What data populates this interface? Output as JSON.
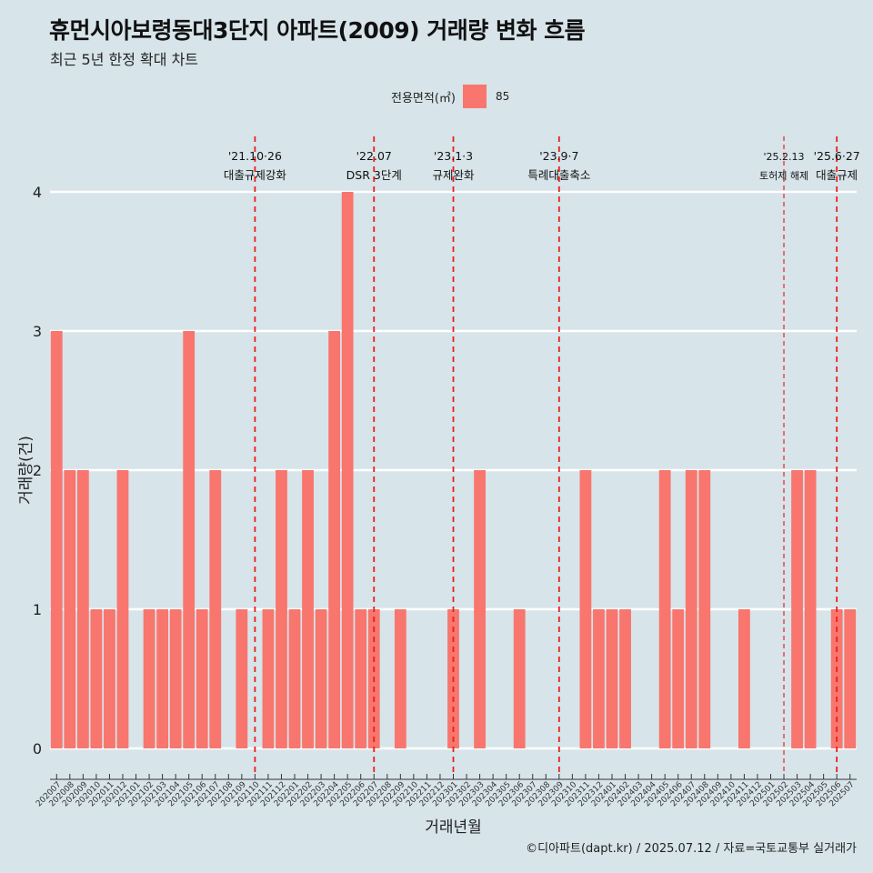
{
  "title": "휴먼시아보령동대3단지 아파트(2009) 거래량 변화 흐름",
  "subtitle": "최근 5년 한정 확대 차트",
  "caption": "©디아파트(dapt.kr) / 2025.07.12 / 자료=국토교통부 실거래가",
  "legend": {
    "label": "전용면적(㎡)",
    "entry": "85",
    "color": "#f8766d"
  },
  "colors": {
    "background": "#d7e4ea",
    "bar": "#f8766d",
    "event_line": "#e8201a",
    "grid": "#ffffff"
  },
  "chart_data": {
    "type": "bar",
    "title": "휴먼시아보령동대3단지 아파트(2009) 거래량 변화 흐름",
    "xlabel": "거래년월",
    "ylabel": "거래량(건)",
    "ylim": [
      0,
      4
    ],
    "y_ticks": [
      "0",
      "1",
      "2",
      "3",
      "4"
    ],
    "grid": true,
    "legend_placement": "top",
    "categories": [
      "202007",
      "202008",
      "202009",
      "202010",
      "202011",
      "202012",
      "202101",
      "202102",
      "202103",
      "202104",
      "202105",
      "202106",
      "202107",
      "202108",
      "202109",
      "202110",
      "202111",
      "202112",
      "202201",
      "202202",
      "202203",
      "202204",
      "202205",
      "202206",
      "202207",
      "202208",
      "202209",
      "202210",
      "202211",
      "202212",
      "202301",
      "202302",
      "202303",
      "202304",
      "202305",
      "202306",
      "202307",
      "202308",
      "202309",
      "202310",
      "202311",
      "202312",
      "202401",
      "202402",
      "202403",
      "202404",
      "202405",
      "202406",
      "202407",
      "202408",
      "202409",
      "202410",
      "202411",
      "202412",
      "202501",
      "202502",
      "202503",
      "202504",
      "202505",
      "202506",
      "202507"
    ],
    "series": [
      {
        "name": "85",
        "values": [
          3,
          2,
          2,
          1,
          1,
          2,
          0,
          1,
          1,
          1,
          3,
          1,
          2,
          0,
          1,
          0,
          1,
          2,
          1,
          2,
          1,
          3,
          4,
          1,
          1,
          0,
          1,
          0,
          0,
          0,
          1,
          0,
          2,
          0,
          0,
          1,
          0,
          0,
          0,
          0,
          2,
          1,
          1,
          1,
          0,
          0,
          2,
          1,
          2,
          2,
          0,
          0,
          1,
          0,
          0,
          0,
          2,
          2,
          0,
          1,
          1
        ]
      }
    ],
    "events": [
      {
        "date": "'21.10·26",
        "label": "대출규제강화",
        "category": "202110",
        "style": "dashed"
      },
      {
        "date": "'22.07",
        "label": "DSR 3단계",
        "category": "202207",
        "style": "dashed"
      },
      {
        "date": "'23.1·3",
        "label": "규제완화",
        "category": "202301",
        "style": "dashed"
      },
      {
        "date": "'23.9·7",
        "label": "특례대출축소",
        "category": "202309",
        "style": "dashed"
      },
      {
        "date": "'25.2.13",
        "label": "토허제 해제",
        "category": "202502",
        "style": "dashed-thin"
      },
      {
        "date": "'25.6·27",
        "label": "대출규제",
        "category": "202506",
        "style": "dashed"
      }
    ]
  }
}
